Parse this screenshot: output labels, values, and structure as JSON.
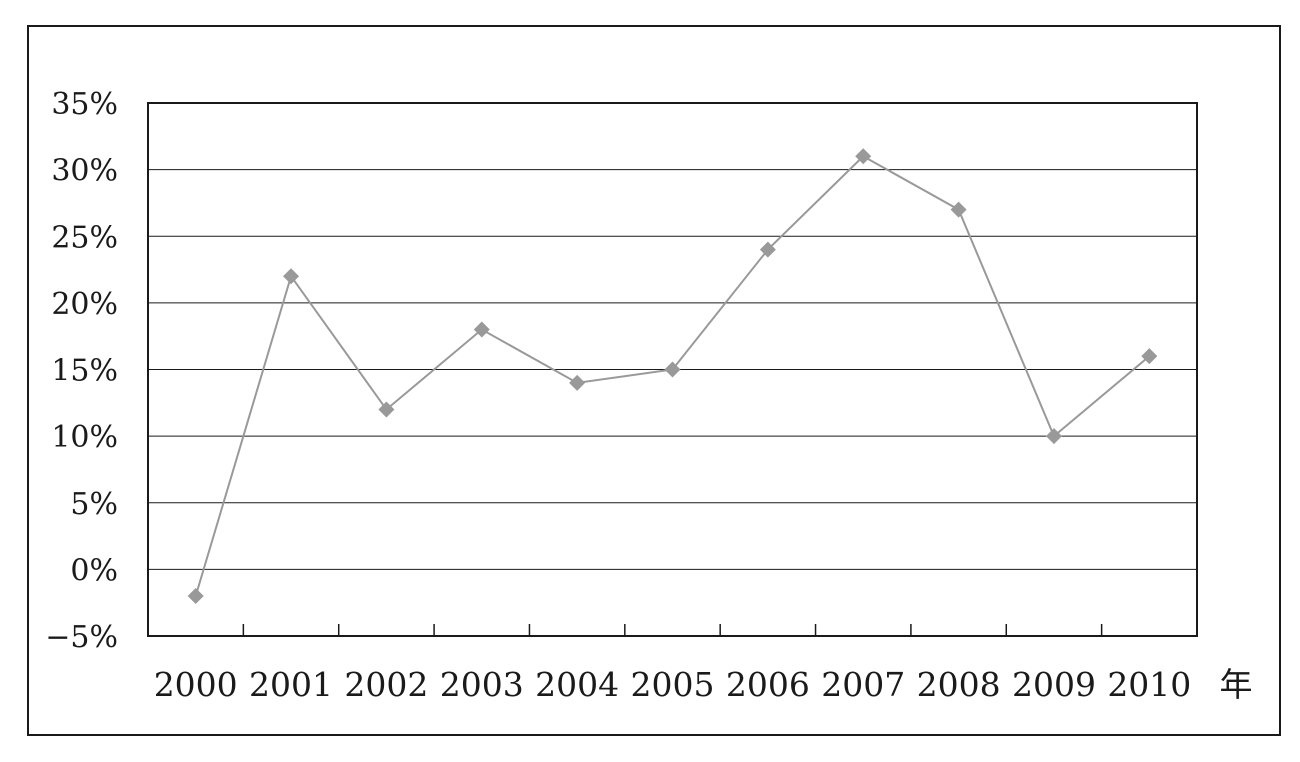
{
  "chart_data": {
    "type": "line",
    "categories": [
      "2000",
      "2001",
      "2002",
      "2003",
      "2004",
      "2005",
      "2006",
      "2007",
      "2008",
      "2009",
      "2010"
    ],
    "x_unit": "年",
    "series": [
      {
        "values": [
          -2,
          22,
          12,
          18,
          14,
          15,
          24,
          31,
          27,
          10,
          16
        ]
      }
    ],
    "ylim": [
      -5,
      35
    ],
    "yticks": [
      -5,
      0,
      5,
      10,
      15,
      20,
      25,
      30,
      35
    ],
    "ytick_labels": [
      "−5%",
      "0%",
      "5%",
      "10%",
      "15%",
      "20%",
      "25%",
      "30%",
      "35%"
    ],
    "grid": true,
    "marker": "diamond",
    "colors": {
      "line": "#999999",
      "marker": "#999999",
      "axis": "#1a1a1a",
      "grid": "#1a1a1a"
    }
  }
}
